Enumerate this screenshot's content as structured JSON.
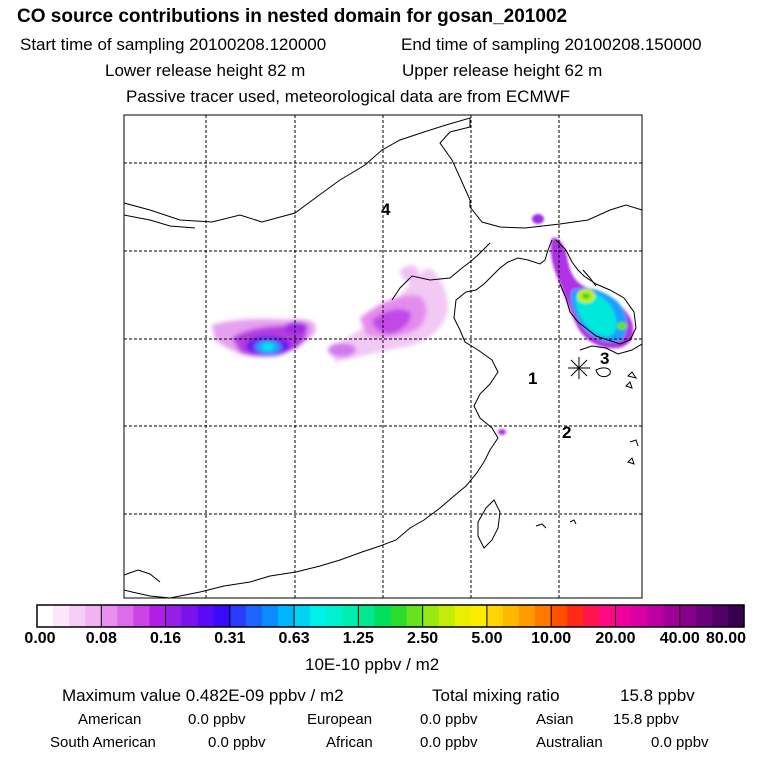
{
  "header": {
    "title": "CO  source contributions in nested domain for gosan_201002",
    "start_label": "Start time of sampling 20100208.120000",
    "end_label": "End time of sampling 20100208.150000",
    "lower_label": "Lower release height   82 m",
    "upper_label": "Upper release height   62 m",
    "tracer_line": "Passive tracer used, meteorological data are from ECMWF"
  },
  "map": {
    "region_labels": [
      "1",
      "2",
      "3",
      "4"
    ],
    "station_marker": "gosan"
  },
  "colorbar": {
    "unit": "10E-10 ppbv / m2",
    "tick_labels": [
      "0.00",
      "0.08",
      "0.16",
      "0.31",
      "0.63",
      "1.25",
      "2.50",
      "5.00",
      "10.00",
      "20.00",
      "40.00",
      "80.00"
    ],
    "colors": [
      "#ffffff",
      "#fbe6fb",
      "#f6cdf7",
      "#f0b4f3",
      "#e890ef",
      "#dc6ceb",
      "#cc44e6",
      "#b21ee6",
      "#961ee6",
      "#7a12ee",
      "#5a0af6",
      "#3a0afa",
      "#2a3cff",
      "#1e64ff",
      "#0a8cff",
      "#00b4ff",
      "#00d4f4",
      "#00f0ea",
      "#00f0d0",
      "#00eeb0",
      "#00e890",
      "#00e060",
      "#2cdc2c",
      "#66e21e",
      "#98e812",
      "#c4ec08",
      "#e8f000",
      "#fcec00",
      "#ffd400",
      "#ffb800",
      "#ff9a00",
      "#ff7800",
      "#ff5000",
      "#ff2a14",
      "#ff1450",
      "#ff0a86",
      "#f0009c",
      "#d800a4",
      "#bc00a0",
      "#a00096",
      "#86008a",
      "#6a007c",
      "#500066",
      "#380050"
    ]
  },
  "stats": {
    "max_label": "Maximum value  0.482E-09 ppbv / m2",
    "total_label": "Total mixing ratio",
    "total_value": "15.8 ppbv",
    "american_label": "American",
    "american_value": "0.0 ppbv",
    "european_label": "European",
    "european_value": "0.0 ppbv",
    "asian_label": "Asian",
    "asian_value": "15.8 ppbv",
    "south_american_label": "South American",
    "south_american_value": "0.0 ppbv",
    "african_label": "African",
    "african_value": "0.0 ppbv",
    "australian_label": "Australian",
    "australian_value": "0.0 ppbv"
  }
}
